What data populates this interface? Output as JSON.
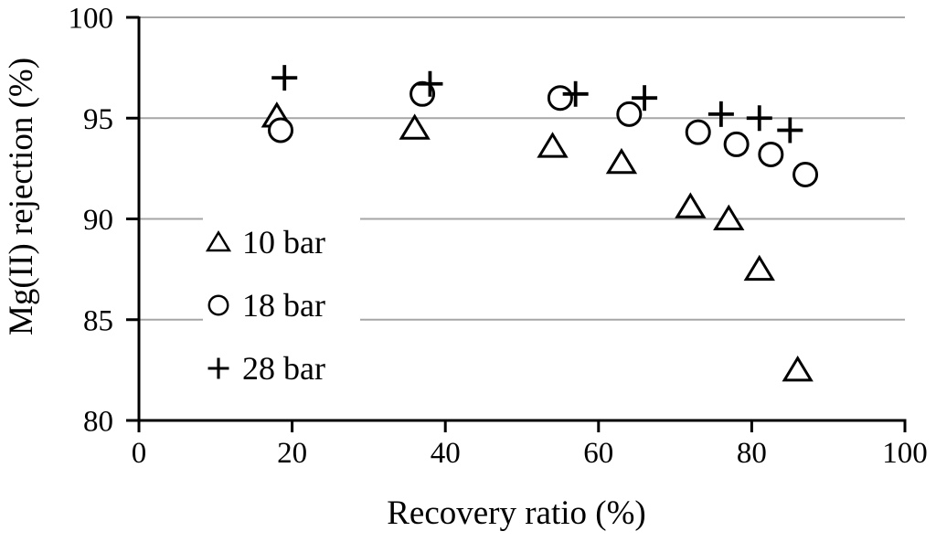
{
  "chart_data": {
    "type": "scatter",
    "title": "",
    "xlabel": "Recovery ratio (%)",
    "ylabel": "Mg(II) rejection (%)",
    "xlim": [
      0,
      100
    ],
    "ylim": [
      80,
      100
    ],
    "xticks": [
      0,
      20,
      40,
      60,
      80,
      100
    ],
    "yticks": [
      80,
      85,
      90,
      95,
      100
    ],
    "grid": "horizontal",
    "gridline_values": [
      85,
      90,
      95,
      100
    ],
    "legend_position": "inside-left",
    "series": [
      {
        "name": "10 bar",
        "marker": "triangle",
        "points": [
          [
            18,
            95.1
          ],
          [
            36,
            94.5
          ],
          [
            54,
            93.6
          ],
          [
            63,
            92.8
          ],
          [
            72,
            90.6
          ],
          [
            77,
            90.0
          ],
          [
            81,
            87.5
          ],
          [
            86,
            82.5
          ]
        ]
      },
      {
        "name": "18 bar",
        "marker": "circle",
        "points": [
          [
            18.5,
            94.4
          ],
          [
            37,
            96.2
          ],
          [
            55,
            96.0
          ],
          [
            64,
            95.2
          ],
          [
            73,
            94.3
          ],
          [
            78,
            93.7
          ],
          [
            82.5,
            93.2
          ],
          [
            87,
            92.2
          ]
        ]
      },
      {
        "name": "28 bar",
        "marker": "plus",
        "points": [
          [
            19,
            97.0
          ],
          [
            38,
            96.7
          ],
          [
            57,
            96.2
          ],
          [
            66,
            96.0
          ],
          [
            76,
            95.2
          ],
          [
            81,
            95.0
          ],
          [
            85,
            94.4
          ]
        ]
      }
    ],
    "colors": {
      "marker": "#000000",
      "axis": "#000000",
      "gridline": "#a6a6a6",
      "background": "#ffffff"
    }
  }
}
